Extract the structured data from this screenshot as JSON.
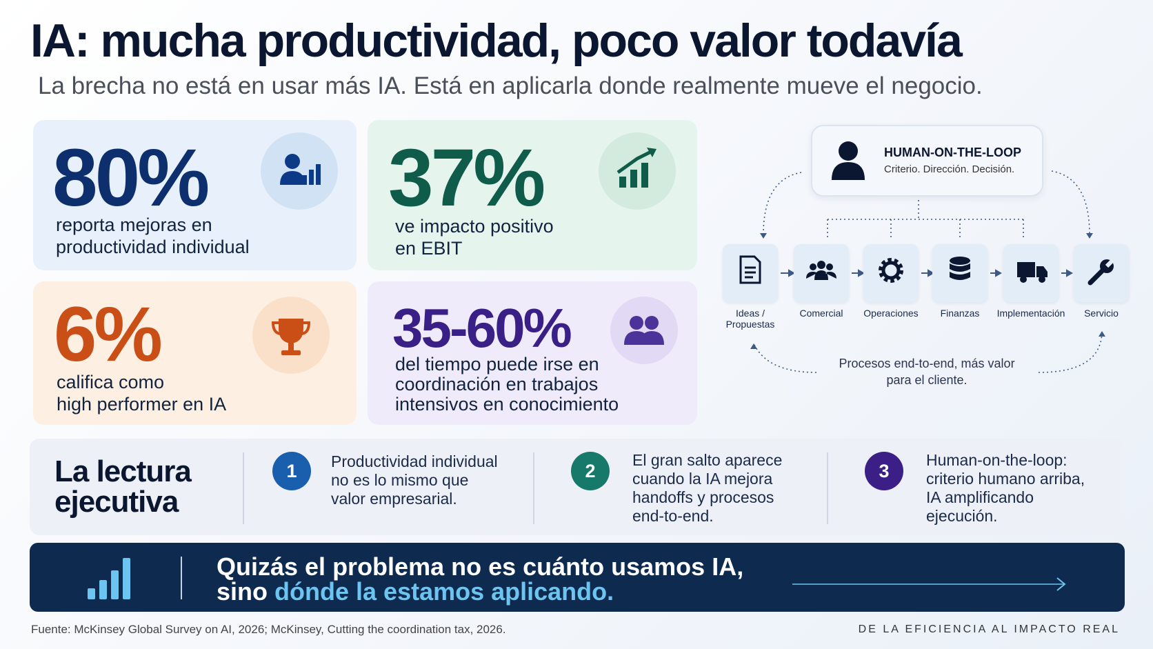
{
  "header": {
    "title": "IA: mucha productividad, poco valor todavía",
    "subtitle": "La brecha no está en usar más IA. Está en aplicarla donde realmente mueve el negocio."
  },
  "stats": [
    {
      "value": "80%",
      "lines": [
        "reporta mejoras en",
        "productividad individual"
      ]
    },
    {
      "value": "37%",
      "lines": [
        "ve impacto  positivo",
        "en EBIT"
      ]
    },
    {
      "value": "6%",
      "lines": [
        "califica como",
        "high performer en IA"
      ]
    },
    {
      "value": "35-60%",
      "lines": [
        "del tiempo puede irse en",
        "coordinación en trabajos",
        "intensivos en conocimiento"
      ]
    }
  ],
  "diagram": {
    "top_title": "HUMAN-ON-THE-LOOP",
    "top_subtitle": "Criterio. Dirección. Decisión.",
    "steps": [
      [
        "Ideas /",
        "Propuestas"
      ],
      [
        "Comercial"
      ],
      [
        "Operaciones"
      ],
      [
        "Finanzas"
      ],
      [
        "Implementación"
      ],
      [
        "Servicio"
      ]
    ],
    "caption": [
      "Procesos end-to-end, más valor",
      "para el cliente."
    ]
  },
  "reading": {
    "title": [
      "La lectura",
      "ejecutiva"
    ],
    "items": [
      {
        "number": "1",
        "lines": [
          "Productividad individual",
          "no es lo mismo que",
          "valor empresarial."
        ]
      },
      {
        "number": "2",
        "lines": [
          "El gran salto aparece",
          "cuando la IA mejora",
          "handoffs y procesos",
          "end-to-end."
        ]
      },
      {
        "number": "3",
        "lines": [
          "Human-on-the-loop:",
          "criterio humano arriba,",
          "IA amplificando",
          "ejecución."
        ]
      }
    ]
  },
  "banner": {
    "line1": "Quizás el problema no es cuánto usamos IA,",
    "line2_prefix": "sino",
    "line2_highlight": "dónde la estamos aplicando."
  },
  "footer": {
    "source": "Fuente: McKinsey Global Survey on AI, 2026; McKinsey, Cutting the coordination tax, 2026.",
    "tagline": "DE LA EFICIENCIA AL IMPACTO REAL"
  }
}
